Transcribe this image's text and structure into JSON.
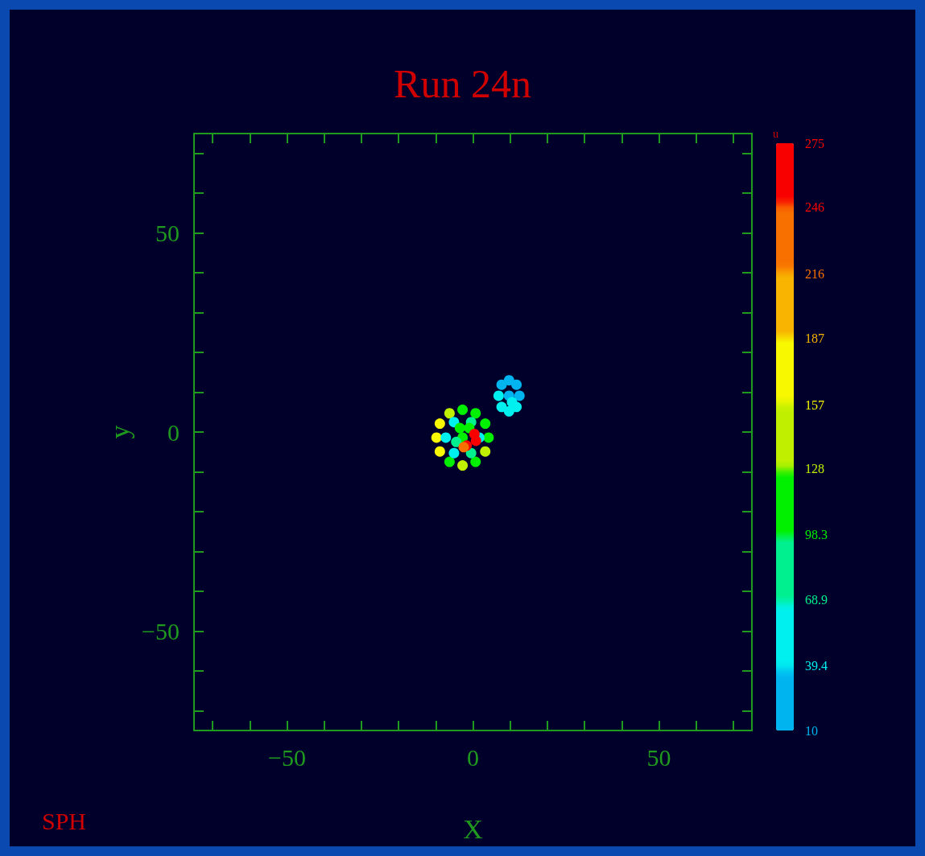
{
  "chart_data": {
    "type": "scatter",
    "title": "Run 24n",
    "xlabel": "X",
    "ylabel": "y",
    "clabel": "u",
    "annotations": [
      "SPH"
    ],
    "xlim": [
      -75,
      75
    ],
    "ylim": [
      -75,
      75
    ],
    "xticks": [
      {
        "value": -70,
        "label": null
      },
      {
        "value": -60,
        "label": null
      },
      -50,
      {
        "value": -40,
        "label": null
      },
      {
        "value": -30,
        "label": null
      },
      {
        "value": -20,
        "label": null
      },
      {
        "value": -10,
        "label": null
      },
      0,
      {
        "value": 10,
        "label": null
      },
      {
        "value": 20,
        "label": null
      },
      {
        "value": 30,
        "label": null
      },
      {
        "value": 40,
        "label": null
      },
      50,
      {
        "value": 60,
        "label": null
      },
      {
        "value": 70,
        "label": null
      }
    ],
    "yticks": [
      {
        "value": -70,
        "label": null
      },
      {
        "value": -60,
        "label": null
      },
      -50,
      {
        "value": -40,
        "label": null
      },
      {
        "value": -30,
        "label": null
      },
      {
        "value": -20,
        "label": null
      },
      {
        "value": -10,
        "label": null
      },
      0,
      {
        "value": 10,
        "label": null
      },
      {
        "value": 20,
        "label": null
      },
      {
        "value": 30,
        "label": null
      },
      {
        "value": 40,
        "label": null
      },
      50,
      {
        "value": 60,
        "label": null
      },
      {
        "value": 70,
        "label": null
      }
    ],
    "clim": [
      10,
      275
    ],
    "cticks": [
      10,
      39.4,
      68.9,
      98.3,
      128,
      157,
      187,
      216,
      246,
      275
    ],
    "grid": false,
    "marker": "circle",
    "x": [
      4.2,
      3.3,
      0.7,
      -2.8,
      -6.3,
      -8.9,
      -9.8,
      -8.9,
      -6.3,
      -2.8,
      0.7,
      3.3,
      1.7,
      -0.5,
      -5.1,
      -7.3,
      -5.1,
      -0.5,
      -2.8,
      -3.5,
      -1,
      -4.5,
      0.4,
      0.8,
      -1.7,
      -2.5,
      9.7,
      12.5,
      11.7,
      9.7,
      7.7,
      6.9,
      7.7,
      9.7,
      11.7,
      10.5
    ],
    "values": [
      -1.4,
      2.1,
      4.7,
      5.6,
      4.7,
      2.1,
      -1.4,
      -4.9,
      -7.5,
      -8.4,
      -7.5,
      -4.9,
      -1.4,
      2.5,
      2.5,
      -1.4,
      -5.3,
      -5.3,
      -1.4,
      1,
      1,
      -2.5,
      -0.5,
      -2.2,
      -3.4,
      -3.8,
      9.1,
      9.1,
      11.9,
      13,
      11.9,
      9.1,
      6.3,
      5.2,
      6.3,
      7.5
    ],
    "cvalues": [
      120,
      110,
      115,
      125,
      140,
      170,
      180,
      160,
      120,
      150,
      115,
      135,
      60,
      70,
      65,
      55,
      60,
      75,
      105,
      100,
      110,
      90,
      260,
      250,
      265,
      230,
      30,
      35,
      25,
      30,
      28,
      40,
      55,
      45,
      65,
      50
    ]
  }
}
